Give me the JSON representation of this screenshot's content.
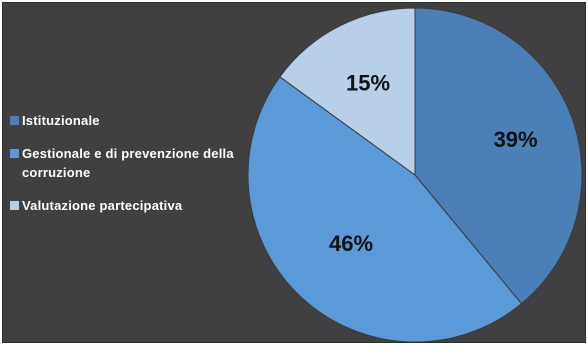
{
  "chart_data": {
    "type": "pie",
    "title": "",
    "categories": [
      "Istituzionale",
      "Gestionale e di prevenzione della corruzione",
      "Valutazione partecipativa"
    ],
    "values": [
      39,
      46,
      15
    ],
    "data_labels": [
      "39%",
      "46%",
      "15%"
    ],
    "colors": [
      "#4b7fb8",
      "#5b9ad8",
      "#b8cfe8"
    ],
    "legend": "left",
    "background": "#404040"
  }
}
